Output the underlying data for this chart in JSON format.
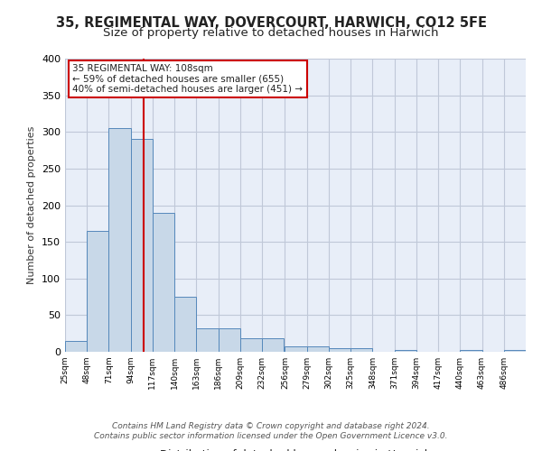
{
  "title1": "35, REGIMENTAL WAY, DOVERCOURT, HARWICH, CO12 5FE",
  "title2": "Size of property relative to detached houses in Harwich",
  "xlabel": "Distribution of detached houses by size in Harwich",
  "ylabel": "Number of detached properties",
  "bar_color": "#c8d8e8",
  "bar_edge_color": "#5588bb",
  "bins": [
    25,
    48,
    71,
    94,
    117,
    140,
    163,
    186,
    209,
    232,
    256,
    279,
    302,
    325,
    348,
    371,
    394,
    417,
    440,
    463,
    486
  ],
  "values": [
    15,
    165,
    305,
    290,
    190,
    75,
    32,
    32,
    18,
    18,
    8,
    8,
    5,
    5,
    0,
    3,
    0,
    0,
    2,
    0,
    3
  ],
  "tick_labels": [
    "25sqm",
    "48sqm",
    "71sqm",
    "94sqm",
    "117sqm",
    "140sqm",
    "163sqm",
    "186sqm",
    "209sqm",
    "232sqm",
    "256sqm",
    "279sqm",
    "302sqm",
    "325sqm",
    "348sqm",
    "371sqm",
    "394sqm",
    "417sqm",
    "440sqm",
    "463sqm",
    "486sqm"
  ],
  "property_sqm": 108,
  "red_line_x": 108,
  "annotation_text": "35 REGIMENTAL WAY: 108sqm\n← 59% of detached houses are smaller (655)\n40% of semi-detached houses are larger (451) →",
  "annotation_box_color": "#ffffff",
  "annotation_box_edge": "#cc0000",
  "red_line_color": "#cc0000",
  "ylim": [
    0,
    400
  ],
  "yticks": [
    0,
    50,
    100,
    150,
    200,
    250,
    300,
    350,
    400
  ],
  "grid_color": "#c0c8d8",
  "bg_color": "#e8eef8",
  "footer_text": "Contains HM Land Registry data © Crown copyright and database right 2024.\nContains public sector information licensed under the Open Government Licence v3.0."
}
